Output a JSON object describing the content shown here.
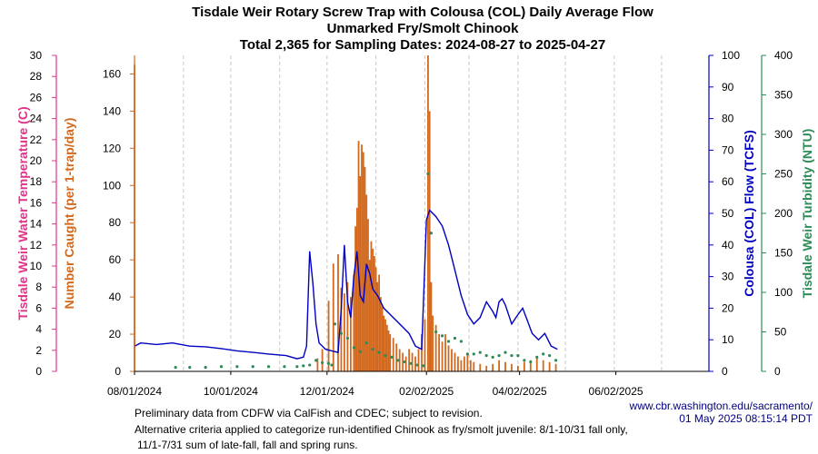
{
  "titles": {
    "line1": "Tisdale Weir Rotary Screw Trap with Colousa (COL) Daily Average Flow",
    "line2": "Unmarked Fry/Smolt Chinook",
    "line3": "Total 2,365 for Sampling Dates: 2024-08-27 to 2025-04-27"
  },
  "footer": {
    "line1": "Preliminary data from CDFW via CalFish and CDEC; subject to revision.",
    "line2": "Alternative criteria applied to categorize run-identified Chinook as fry/smolt juvenile: 8/1-10/31 fall only,",
    "line3": "11/1-7/31 sum of late-fall, fall and spring runs.",
    "url": "www.cbr.washington.edu/sacramento/",
    "timestamp": "01 May 2025 08:15:14 PDT"
  },
  "chart_data": {
    "type": "bar+line+scatter",
    "x_axis": {
      "type": "date",
      "range": [
        "2024-08-01",
        "2025-07-31"
      ],
      "tick_labels": [
        "08/01/2024",
        "10/01/2024",
        "12/01/2024",
        "02/02/2025",
        "04/02/2025",
        "06/02/2025"
      ],
      "tick_dates": [
        "2024-08-01",
        "2024-10-01",
        "2024-12-01",
        "2025-02-02",
        "2025-04-02",
        "2025-06-02"
      ],
      "grid": "dashed-monthly"
    },
    "axes": {
      "temperature": {
        "label": "Tisdale Weir Water Temperature (C)",
        "range": [
          0,
          30
        ],
        "ticks": [
          0,
          2,
          4,
          6,
          8,
          10,
          12,
          14,
          16,
          18,
          20,
          22,
          24,
          26,
          28,
          30
        ],
        "color": "#e0338a",
        "side": "left-outer"
      },
      "caught": {
        "label": "Number Caught (per 1-trap/day)",
        "range": [
          0,
          170
        ],
        "ticks": [
          0,
          20,
          40,
          60,
          80,
          100,
          120,
          140,
          160
        ],
        "color": "#d2691e",
        "side": "left-inner"
      },
      "flow": {
        "label": "Colousa (COL) Flow (TCFS)",
        "range": [
          0,
          100
        ],
        "ticks": [
          0,
          10,
          20,
          30,
          40,
          50,
          60,
          70,
          80,
          90,
          100
        ],
        "color": "#0000c0",
        "side": "right-inner"
      },
      "turbidity": {
        "label": "Tisdale Weir Turbidity (NTU)",
        "range": [
          0,
          400
        ],
        "ticks": [
          0,
          50,
          100,
          150,
          200,
          250,
          300,
          350,
          400
        ],
        "color": "#2e8b57",
        "side": "right-outer"
      }
    },
    "series": [
      {
        "name": "Number Caught (per 1-trap/day)",
        "kind": "bar",
        "axis": "caught",
        "color": "#d2691e",
        "x": [
          "2024-08-01",
          "2024-11-25",
          "2024-11-28",
          "2024-12-02",
          "2024-12-05",
          "2024-12-08",
          "2024-12-10",
          "2024-12-12",
          "2024-12-14",
          "2024-12-16",
          "2024-12-18",
          "2024-12-19",
          "2024-12-20",
          "2024-12-21",
          "2024-12-22",
          "2024-12-23",
          "2024-12-24",
          "2024-12-25",
          "2024-12-26",
          "2024-12-27",
          "2024-12-28",
          "2024-12-29",
          "2024-12-30",
          "2024-12-31",
          "2025-01-01",
          "2025-01-02",
          "2025-01-03",
          "2025-01-04",
          "2025-01-05",
          "2025-01-06",
          "2025-01-07",
          "2025-01-08",
          "2025-01-09",
          "2025-01-10",
          "2025-01-12",
          "2025-01-14",
          "2025-01-16",
          "2025-01-18",
          "2025-01-20",
          "2025-01-22",
          "2025-01-24",
          "2025-01-26",
          "2025-01-28",
          "2025-01-30",
          "2025-02-01",
          "2025-02-03",
          "2025-02-04",
          "2025-02-05",
          "2025-02-06",
          "2025-02-08",
          "2025-02-10",
          "2025-02-12",
          "2025-02-14",
          "2025-02-16",
          "2025-02-18",
          "2025-02-20",
          "2025-02-22",
          "2025-02-24",
          "2025-02-26",
          "2025-02-28",
          "2025-03-02",
          "2025-03-04",
          "2025-03-08",
          "2025-03-12",
          "2025-03-16",
          "2025-03-20",
          "2025-03-24",
          "2025-03-28",
          "2025-04-01",
          "2025-04-05",
          "2025-04-09",
          "2025-04-13",
          "2025-04-17",
          "2025-04-21",
          "2025-04-25"
        ],
        "values": [
          165,
          7,
          12,
          38,
          58,
          63,
          45,
          42,
          48,
          40,
          52,
          78,
          88,
          124,
          105,
          122,
          118,
          110,
          95,
          82,
          60,
          70,
          66,
          62,
          56,
          48,
          52,
          40,
          35,
          30,
          28,
          25,
          22,
          20,
          18,
          15,
          12,
          10,
          8,
          12,
          10,
          8,
          12,
          20,
          28,
          170,
          140,
          48,
          30,
          25,
          20,
          16,
          20,
          14,
          12,
          10,
          8,
          6,
          8,
          10,
          6,
          5,
          4,
          3,
          4,
          6,
          5,
          4,
          3,
          5,
          6,
          8,
          6,
          5,
          4
        ]
      },
      {
        "name": "Colousa (COL) Flow (TCFS)",
        "kind": "line",
        "axis": "flow",
        "color": "#0000c0",
        "x": [
          "2024-08-01",
          "2024-08-05",
          "2024-08-15",
          "2024-08-25",
          "2024-09-05",
          "2024-09-15",
          "2024-09-25",
          "2024-10-05",
          "2024-10-15",
          "2024-10-25",
          "2024-11-05",
          "2024-11-12",
          "2024-11-16",
          "2024-11-18",
          "2024-11-20",
          "2024-11-22",
          "2024-11-24",
          "2024-11-26",
          "2024-11-30",
          "2024-12-04",
          "2024-12-08",
          "2024-12-10",
          "2024-12-12",
          "2024-12-14",
          "2024-12-16",
          "2024-12-18",
          "2024-12-20",
          "2024-12-22",
          "2024-12-24",
          "2024-12-26",
          "2024-12-28",
          "2024-12-30",
          "2025-01-02",
          "2025-01-06",
          "2025-01-10",
          "2025-01-14",
          "2025-01-18",
          "2025-01-22",
          "2025-01-26",
          "2025-01-30",
          "2025-02-02",
          "2025-02-04",
          "2025-02-06",
          "2025-02-08",
          "2025-02-12",
          "2025-02-16",
          "2025-02-20",
          "2025-02-24",
          "2025-02-28",
          "2025-03-04",
          "2025-03-08",
          "2025-03-12",
          "2025-03-16",
          "2025-03-18",
          "2025-03-20",
          "2025-03-22",
          "2025-03-24",
          "2025-03-28",
          "2025-04-01",
          "2025-04-04",
          "2025-04-07",
          "2025-04-10",
          "2025-04-14",
          "2025-04-18",
          "2025-04-22",
          "2025-04-26"
        ],
        "values": [
          8,
          9,
          8.5,
          9,
          8,
          7.8,
          7.2,
          6.5,
          6,
          5.5,
          5,
          4,
          4.5,
          8,
          38,
          28,
          15,
          9,
          7,
          6.5,
          6,
          20,
          40,
          22,
          17,
          30,
          38,
          24,
          22,
          34,
          31,
          26,
          24,
          20,
          18,
          16,
          14,
          12,
          8,
          7,
          48,
          51,
          50,
          49,
          46,
          40,
          32,
          24,
          18,
          15,
          17,
          22,
          19,
          17,
          22,
          23,
          21,
          15,
          18,
          20,
          16,
          12,
          10,
          12,
          8,
          7
        ]
      },
      {
        "name": "Tisdale Weir Turbidity (NTU)",
        "kind": "scatter",
        "axis": "turbidity",
        "color": "#2e8b57",
        "x": [
          "2024-08-27",
          "2024-09-05",
          "2024-09-15",
          "2024-09-25",
          "2024-10-05",
          "2024-10-15",
          "2024-10-25",
          "2024-11-04",
          "2024-11-12",
          "2024-11-16",
          "2024-11-20",
          "2024-11-24",
          "2024-11-28",
          "2024-12-02",
          "2024-12-04",
          "2024-12-06",
          "2024-12-10",
          "2024-12-14",
          "2024-12-18",
          "2024-12-22",
          "2024-12-26",
          "2024-12-30",
          "2025-01-03",
          "2025-01-07",
          "2025-01-11",
          "2025-01-15",
          "2025-01-19",
          "2025-01-23",
          "2025-01-27",
          "2025-01-31",
          "2025-02-03",
          "2025-02-05",
          "2025-02-08",
          "2025-02-12",
          "2025-02-16",
          "2025-02-20",
          "2025-02-24",
          "2025-02-28",
          "2025-03-04",
          "2025-03-08",
          "2025-03-12",
          "2025-03-16",
          "2025-03-20",
          "2025-03-24",
          "2025-03-28",
          "2025-04-01",
          "2025-04-05",
          "2025-04-09",
          "2025-04-13",
          "2025-04-17",
          "2025-04-21",
          "2025-04-25"
        ],
        "values": [
          5,
          5,
          5,
          6,
          6,
          6,
          6,
          6,
          6,
          7,
          8,
          14,
          11,
          10,
          8,
          60,
          48,
          42,
          30,
          25,
          36,
          28,
          24,
          20,
          18,
          14,
          12,
          10,
          8,
          7,
          250,
          175,
          50,
          45,
          38,
          42,
          38,
          22,
          22,
          24,
          20,
          18,
          20,
          24,
          20,
          20,
          14,
          12,
          18,
          22,
          20,
          14
        ]
      }
    ]
  }
}
